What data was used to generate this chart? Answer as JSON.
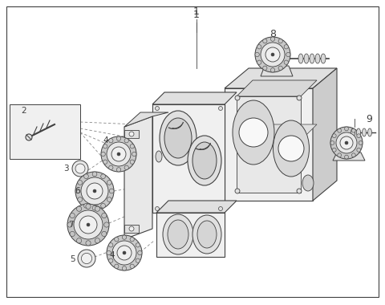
{
  "background_color": "#ffffff",
  "line_color": "#404040",
  "thin_line": 0.6,
  "medium_line": 0.9,
  "thick_line": 1.2,
  "fill_light": "#f0f0f0",
  "fill_mid": "#e0e0e0",
  "fill_dark": "#cccccc",
  "fig_width": 4.8,
  "fig_height": 3.8,
  "dpi": 100,
  "label_fontsize": 7.5
}
